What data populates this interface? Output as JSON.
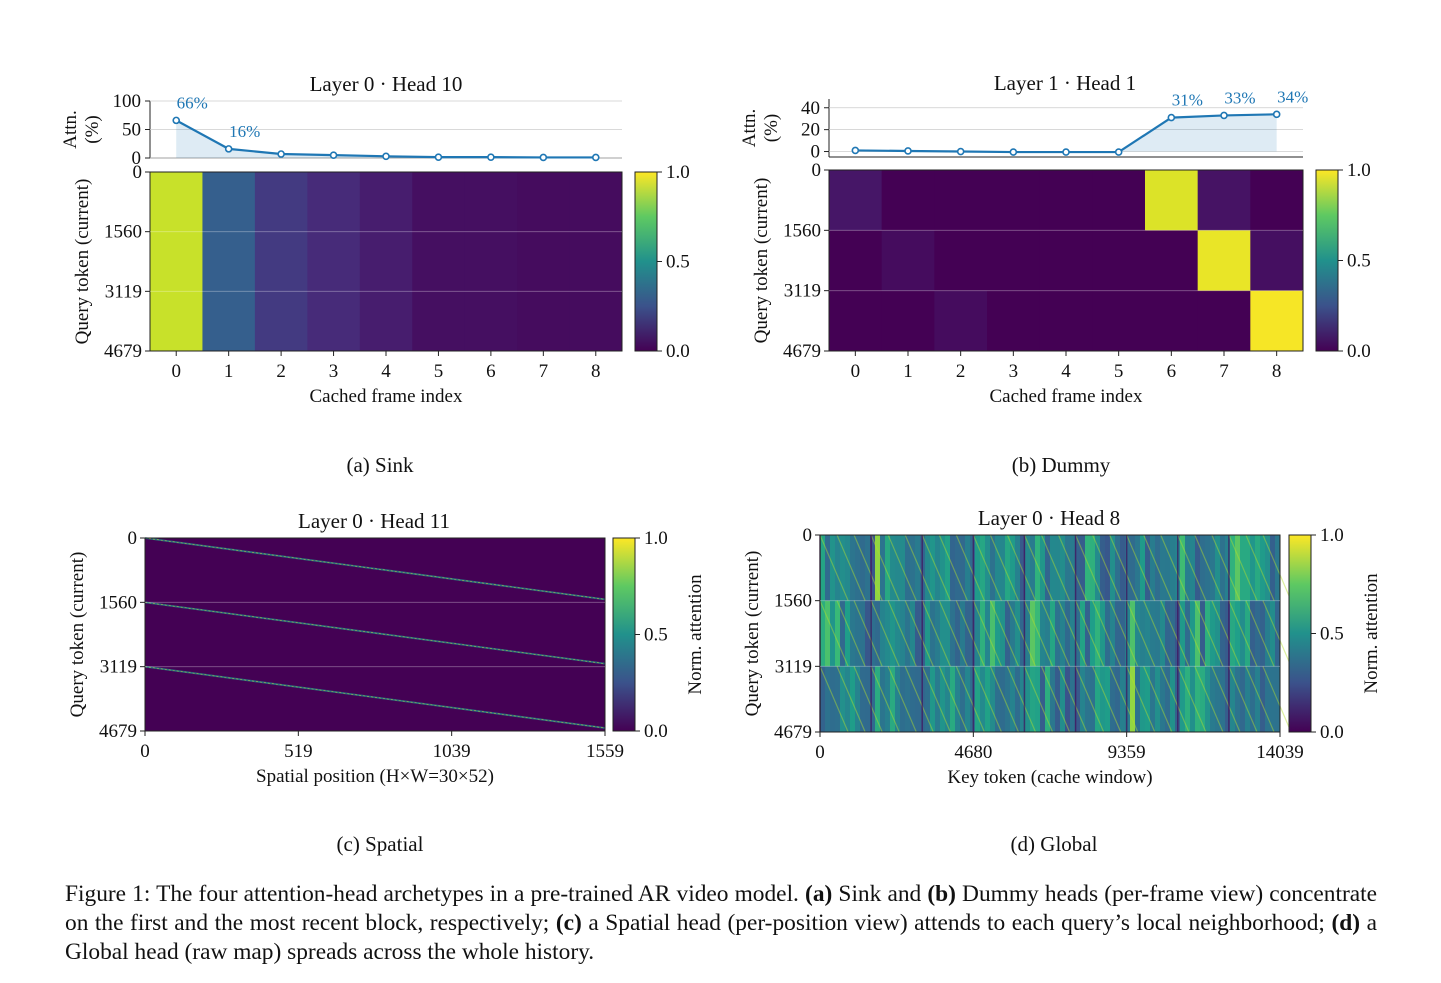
{
  "panels": [
    {
      "id": "a",
      "caption": "(a) Sink",
      "title": "Layer 0 · Head 10",
      "bar_ylabel": [
        "Attn.",
        "(%)"
      ],
      "bar_yticks": [
        "100",
        "50",
        "0"
      ],
      "heat_ylabel": "Query token (current)",
      "heat_yticks": [
        "0",
        "1560",
        "3119",
        "4679"
      ],
      "xticks": [
        "0",
        "1",
        "2",
        "3",
        "4",
        "5",
        "6",
        "7",
        "8"
      ],
      "xlabel": "Cached frame index",
      "colorbar_ticks": [
        "1.0",
        "0.5",
        "0.0"
      ],
      "colorbar_label": "",
      "line_labels": [
        {
          "index": 0,
          "text": "66%"
        },
        {
          "index": 1,
          "text": "16%"
        }
      ]
    },
    {
      "id": "b",
      "caption": "(b) Dummy",
      "title": "Layer 1 · Head 1",
      "bar_ylabel": [
        "Attn.",
        "(%)"
      ],
      "bar_yticks": [
        "40",
        "20",
        "0"
      ],
      "heat_ylabel": "Query token (current)",
      "heat_yticks": [
        "0",
        "1560",
        "3119",
        "4679"
      ],
      "xticks": [
        "0",
        "1",
        "2",
        "3",
        "4",
        "5",
        "6",
        "7",
        "8"
      ],
      "xlabel": "Cached frame index",
      "colorbar_ticks": [
        "1.0",
        "0.5",
        "0.0"
      ],
      "colorbar_label": "",
      "line_labels": [
        {
          "index": 6,
          "text": "31%"
        },
        {
          "index": 7,
          "text": "33%"
        },
        {
          "index": 8,
          "text": "34%"
        }
      ]
    },
    {
      "id": "c",
      "caption": "(c) Spatial",
      "title": "Layer 0 · Head 11",
      "heat_ylabel": "Query token (current)",
      "heat_yticks": [
        "0",
        "1560",
        "3119",
        "4679"
      ],
      "xticks": [
        "0",
        "519",
        "1039",
        "1559"
      ],
      "xlabel": "Spatial position  (H×W=30×52)",
      "colorbar_ticks": [
        "1.0",
        "0.5",
        "0.0"
      ],
      "colorbar_label": "Norm. attention"
    },
    {
      "id": "d",
      "caption": "(d) Global",
      "title": "Layer 0 · Head 8",
      "heat_ylabel": "Query token (current)",
      "heat_yticks": [
        "0",
        "1560",
        "3119",
        "4679"
      ],
      "xticks": [
        "0",
        "4680",
        "9359",
        "14039"
      ],
      "xlabel": "Key token (cache window)",
      "colorbar_ticks": [
        "1.0",
        "0.5",
        "0.0"
      ],
      "colorbar_label": "Norm. attention"
    }
  ],
  "chart_data": [
    {
      "type": "line",
      "panel": "a",
      "title": "Layer 0 · Head 10",
      "xlabel": "Cached frame index",
      "ylabel": "Attn. (%)",
      "x": [
        0,
        1,
        2,
        3,
        4,
        5,
        6,
        7,
        8
      ],
      "values": [
        66,
        16,
        7,
        5,
        3,
        1.5,
        1.5,
        1,
        1
      ],
      "ylim": [
        0,
        100
      ],
      "grid": true,
      "color": "#1f77b4"
    },
    {
      "type": "heatmap",
      "panel": "a",
      "title": "Layer 0 · Head 10",
      "xlabel": "Cached frame index",
      "ylabel": "Query token (current)",
      "x": [
        0,
        1,
        2,
        3,
        4,
        5,
        6,
        7,
        8
      ],
      "y_range": [
        0,
        4679
      ],
      "column_values": [
        0.92,
        0.3,
        0.17,
        0.12,
        0.08,
        0.04,
        0.04,
        0.03,
        0.03
      ],
      "colormap": "viridis",
      "clim": [
        0,
        1
      ]
    },
    {
      "type": "line",
      "panel": "b",
      "title": "Layer 1 · Head 1",
      "xlabel": "Cached frame index",
      "ylabel": "Attn. (%)",
      "x": [
        0,
        1,
        2,
        3,
        4,
        5,
        6,
        7,
        8
      ],
      "values": [
        1,
        0.5,
        0,
        -0.5,
        -0.5,
        -0.5,
        31,
        33,
        34
      ],
      "ylim": [
        -5,
        48
      ],
      "grid": true,
      "color": "#1f77b4"
    },
    {
      "type": "heatmap",
      "panel": "b",
      "title": "Layer 1 · Head 1",
      "xlabel": "Cached frame index",
      "ylabel": "Query token (current)",
      "x": [
        0,
        1,
        2,
        3,
        4,
        5,
        6,
        7,
        8
      ],
      "y_blocks": [
        [
          0,
          1560
        ],
        [
          1560,
          3119
        ],
        [
          3119,
          4679
        ]
      ],
      "block_values": [
        [
          0.06,
          0.0,
          0.0,
          0.0,
          0.0,
          0.0,
          0.95,
          0.05,
          0.0
        ],
        [
          0.0,
          0.03,
          0.0,
          0.0,
          0.0,
          0.0,
          0.0,
          0.97,
          0.04
        ],
        [
          0.0,
          0.0,
          0.03,
          0.0,
          0.0,
          0.0,
          0.0,
          0.0,
          0.99
        ]
      ],
      "colormap": "viridis",
      "clim": [
        0,
        1
      ]
    },
    {
      "type": "heatmap",
      "panel": "c",
      "title": "Layer 0 · Head 11",
      "xlabel": "Spatial position  (H×W=30×52)",
      "ylabel": "Query token (current)",
      "x_range": [
        0,
        1559
      ],
      "y_range": [
        0,
        4679
      ],
      "y_blocks": [
        [
          0,
          1560
        ],
        [
          1560,
          3119
        ],
        [
          3119,
          4679
        ]
      ],
      "pattern": "diagonal band per block",
      "colormap": "viridis",
      "clim": [
        0,
        1
      ],
      "colorbar_label": "Norm. attention"
    },
    {
      "type": "heatmap",
      "panel": "d",
      "title": "Layer 0 · Head 8",
      "xlabel": "Key token (cache window)",
      "ylabel": "Query token (current)",
      "x_range": [
        0,
        14039
      ],
      "y_range": [
        0,
        4679
      ],
      "pattern": "diffuse attention spread across all cached frames",
      "colormap": "viridis",
      "clim": [
        0,
        1
      ],
      "colorbar_label": "Norm. attention"
    }
  ],
  "figure_caption": {
    "lead": "Figure 1: The four attention-head archetypes in a pre-trained AR video model. ",
    "a_tag": "(a)",
    "a_text": " Sink and ",
    "b_tag": "(b)",
    "b_text": " Dummy heads (per-frame view) concentrate on the first and the most recent block, respectively; ",
    "c_tag": "(c)",
    "c_text": " a Spatial head (per-position view) attends to each query’s local neighborhood; ",
    "d_tag": "(d)",
    "d_text": " a Global head (raw map) spreads across the whole history."
  }
}
